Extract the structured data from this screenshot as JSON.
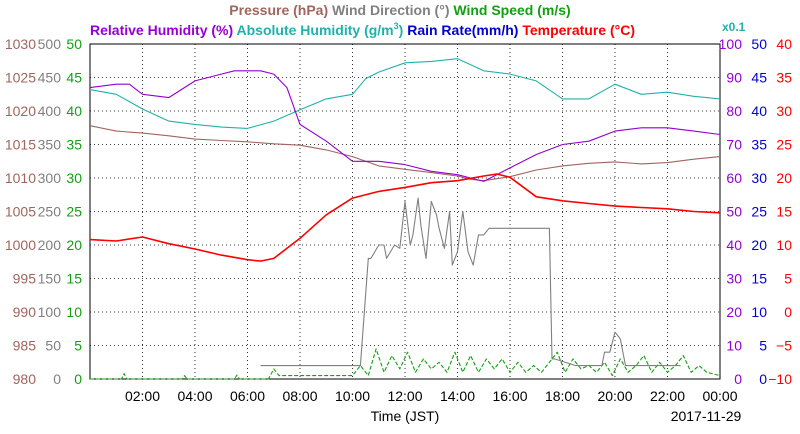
{
  "header": {
    "line1": [
      {
        "text": "Pressure (hPa)",
        "color": "#a0655f"
      },
      {
        "text": "Wind Direction (°)",
        "color": "#808080"
      },
      {
        "text": "Wind Speed (m/s)",
        "color": "#139f13"
      }
    ],
    "line2": [
      {
        "text": "Relative Humidity (%)",
        "color": "#9400d3"
      },
      {
        "text": "Absolute Humidity (g/m",
        "color": "#20b2aa"
      },
      {
        "text": "Rain Rate(mm/h)",
        "color": "#0000cd"
      },
      {
        "text": "Temperature (°C)",
        "color": "#ff0000"
      }
    ],
    "abs_hum_sup": "3",
    "abs_hum_close": ")",
    "abs_hum_scale_note": "x0.1",
    "scale_note_color": "#20b2aa"
  },
  "footer": {
    "xlabel": "Time (JST)",
    "date": "2017-11-29"
  },
  "chart_data": {
    "type": "line",
    "title": "",
    "xlabel": "Time (JST)",
    "xlim": [
      0,
      24
    ],
    "x_tick_labels": [
      "02:00",
      "04:00",
      "06:00",
      "08:00",
      "10:00",
      "12:00",
      "14:00",
      "16:00",
      "18:00",
      "20:00",
      "22:00",
      "00:00"
    ],
    "grid": true,
    "axes": {
      "pressure": {
        "label": "Pressure (hPa)",
        "range": [
          980,
          1030
        ],
        "ticks": [
          "980",
          "985",
          "990",
          "995",
          "1000",
          "1005",
          "1010",
          "1015",
          "1020",
          "1025",
          "1030"
        ],
        "color": "#a0655f",
        "side": "left"
      },
      "wind_direction": {
        "label": "Wind Direction (°)",
        "range": [
          0,
          500
        ],
        "ticks": [
          "0",
          "50",
          "100",
          "150",
          "200",
          "250",
          "300",
          "350",
          "400",
          "450",
          "500"
        ],
        "color": "#808080",
        "side": "left"
      },
      "wind_speed": {
        "label": "Wind Speed (m/s)",
        "range": [
          0,
          50
        ],
        "ticks": [
          "0",
          "5",
          "10",
          "15",
          "20",
          "25",
          "30",
          "35",
          "40",
          "45",
          "50"
        ],
        "color": "#139f13",
        "side": "left"
      },
      "relative_humidity": {
        "label": "Relative Humidity (%)",
        "range": [
          0,
          100
        ],
        "ticks": [
          "0",
          "10",
          "20",
          "30",
          "40",
          "50",
          "60",
          "70",
          "80",
          "90",
          "100"
        ],
        "color": "#9400d3",
        "side": "right"
      },
      "rain_rate": {
        "label": "Rain Rate(mm/h)",
        "range": [
          0,
          50
        ],
        "ticks": [
          "0",
          "5",
          "10",
          "15",
          "20",
          "25",
          "30",
          "35",
          "40",
          "45",
          "50"
        ],
        "color": "#0000cd",
        "side": "right"
      },
      "temperature": {
        "label": "Temperature (°C)",
        "range": [
          -10,
          40
        ],
        "ticks": [
          "−10",
          "−5",
          "0",
          "5",
          "10",
          "15",
          "20",
          "25",
          "30",
          "35",
          "40"
        ],
        "color": "#ff0000",
        "side": "right"
      }
    },
    "series": [
      {
        "name": "Pressure (hPa)",
        "axis": "pressure",
        "color": "#a0655f",
        "x": [
          0,
          1,
          2,
          3,
          4,
          5,
          6,
          7,
          8,
          9,
          10,
          11,
          12,
          13,
          14,
          14.5,
          15,
          16,
          17,
          18,
          19,
          20,
          21,
          22,
          23,
          24
        ],
        "y": [
          1017.8,
          1017.0,
          1016.7,
          1016.3,
          1015.8,
          1015.6,
          1015.4,
          1015.1,
          1014.9,
          1014.2,
          1013.2,
          1011.8,
          1011.3,
          1010.8,
          1010.3,
          1009.8,
          1009.6,
          1010.2,
          1011.2,
          1011.8,
          1012.2,
          1012.4,
          1012.1,
          1012.3,
          1012.8,
          1013.2
        ]
      },
      {
        "name": "Relative Humidity (%)",
        "axis": "relative_humidity",
        "color": "#9400d3",
        "x": [
          0,
          1,
          1.5,
          2,
          3,
          4,
          5,
          5.5,
          6,
          6.5,
          7,
          7.5,
          8,
          9,
          10,
          11,
          12,
          13,
          14,
          14.5,
          15,
          16,
          17,
          18,
          19,
          20,
          21,
          22,
          23,
          24
        ],
        "y": [
          87,
          88,
          88,
          85,
          84,
          89,
          91,
          92,
          92,
          92,
          91,
          87,
          76,
          71,
          65,
          65,
          64,
          62,
          61,
          60,
          59,
          63,
          67,
          70,
          71,
          74,
          75,
          75,
          74,
          73
        ]
      },
      {
        "name": "Absolute Humidity (g/m3) x0.1",
        "axis": "wind_direction",
        "color": "#20b2aa",
        "x": [
          0,
          1,
          2,
          3,
          4,
          5,
          6,
          7,
          8,
          9,
          10,
          10.5,
          11,
          12,
          13,
          14,
          15,
          16,
          16.5,
          17,
          18,
          19,
          20,
          21,
          22,
          23,
          24
        ],
        "y": [
          432,
          425,
          403,
          385,
          380,
          376,
          374,
          385,
          402,
          418,
          425,
          448,
          458,
          472,
          474,
          478,
          460,
          455,
          450,
          445,
          418,
          418,
          440,
          425,
          428,
          422,
          418
        ]
      },
      {
        "name": "Temperature (°C)",
        "axis": "temperature",
        "color": "#ff0000",
        "x": [
          0,
          1,
          2,
          3,
          4,
          5,
          6,
          6.5,
          7,
          8,
          9,
          10,
          11,
          12,
          13,
          14,
          15,
          15.5,
          16,
          17,
          18,
          19,
          20,
          21,
          22,
          23,
          24
        ],
        "y": [
          10.8,
          10.6,
          11.2,
          10.2,
          9.4,
          8.5,
          7.8,
          7.6,
          8.0,
          11.0,
          14.5,
          17.0,
          18.0,
          18.6,
          19.3,
          19.6,
          20.3,
          20.6,
          20.1,
          17.2,
          16.6,
          16.2,
          15.8,
          15.6,
          15.4,
          15.0,
          14.8
        ]
      },
      {
        "name": "Wind Direction (°)",
        "axis": "wind_direction",
        "color": "#808080",
        "x": [
          6.5,
          7.5,
          8.5,
          9.5,
          10.3,
          10.6,
          10.7,
          11.0,
          11.2,
          11.3,
          11.6,
          11.8,
          12.0,
          12.2,
          12.3,
          12.5,
          12.6,
          12.8,
          13.0,
          13.2,
          13.3,
          13.5,
          13.7,
          13.8,
          14.0,
          14.2,
          14.4,
          14.6,
          14.8,
          15.0,
          15.2,
          15.5,
          16.0,
          17.0,
          17.5,
          17.6,
          17.7,
          18.5,
          19.5,
          19.6,
          19.8,
          20.0,
          20.2,
          20.4,
          21.5,
          22.5
        ],
        "y": [
          20,
          20,
          20,
          20,
          20,
          180,
          180,
          200,
          200,
          180,
          200,
          195,
          265,
          200,
          215,
          270,
          230,
          180,
          265,
          245,
          225,
          195,
          250,
          170,
          190,
          250,
          190,
          170,
          215,
          215,
          225,
          225,
          225,
          225,
          225,
          30,
          30,
          20,
          20,
          40,
          40,
          70,
          60,
          20,
          20,
          20
        ]
      },
      {
        "name": "Wind Speed (m/s)",
        "axis": "wind_speed",
        "color": "#139f13",
        "x": [
          0,
          1.2,
          1.3,
          1.4,
          3.5,
          3.6,
          3.7,
          5.5,
          5.6,
          5.7,
          6.8,
          7.0,
          7.2,
          8,
          9,
          10,
          10.3,
          10.6,
          10.9,
          11.2,
          11.5,
          11.8,
          12.1,
          12.4,
          12.7,
          13.0,
          13.3,
          13.6,
          13.9,
          14.2,
          14.5,
          14.8,
          15.1,
          15.4,
          15.7,
          16.0,
          16.3,
          16.6,
          16.9,
          17.2,
          17.5,
          17.8,
          18.1,
          18.4,
          18.7,
          19.0,
          19.3,
          19.6,
          19.9,
          20.2,
          20.5,
          20.8,
          21.1,
          21.4,
          21.7,
          22.0,
          22.3,
          22.6,
          22.9,
          23.2,
          23.5,
          24
        ],
        "y": [
          0,
          0,
          0.8,
          0,
          0,
          0.5,
          0,
          0,
          0.6,
          0,
          0,
          1.5,
          0.5,
          0.5,
          0.5,
          0.5,
          2,
          0.5,
          4.5,
          1,
          3.5,
          1.5,
          4,
          1,
          3,
          1.5,
          2.5,
          1,
          4,
          1,
          3.5,
          1,
          3,
          1.5,
          3,
          1,
          2.5,
          1,
          2,
          1,
          2.5,
          4,
          1,
          3,
          1.5,
          2,
          1,
          2.5,
          0.5,
          3,
          1,
          2,
          3.5,
          1,
          2.5,
          1,
          2,
          3.5,
          1,
          2,
          1,
          0.5
        ]
      }
    ]
  }
}
